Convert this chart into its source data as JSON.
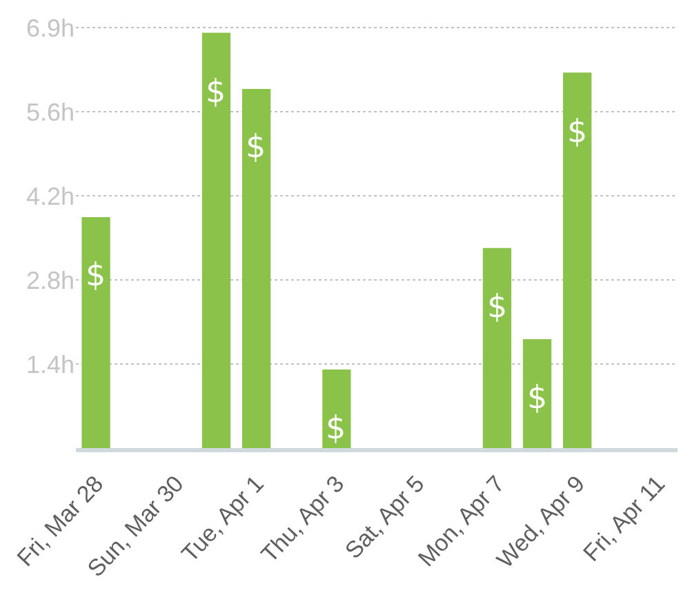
{
  "chart_data": {
    "type": "bar",
    "categories": [
      "Fri, Mar 28",
      null,
      "Sun, Mar 30",
      null,
      "Tue, Apr 1",
      null,
      "Thu, Apr 3",
      null,
      "Sat, Apr 5",
      null,
      "Mon, Apr 7",
      null,
      "Wed, Apr 9",
      null,
      "Fri, Apr 11"
    ],
    "values": [
      3.82,
      0,
      0,
      6.87,
      5.94,
      0,
      1.3,
      0,
      0,
      0,
      3.31,
      1.8,
      6.21,
      0,
      0
    ],
    "value_labels": [
      "$",
      null,
      null,
      "$",
      "$",
      null,
      "$",
      null,
      null,
      null,
      "$",
      "$",
      "$",
      null,
      null
    ],
    "color": "#8bc34a",
    "ylim": [
      0,
      7.0
    ],
    "yticks": [
      {
        "value": 1.39,
        "label": "1.4h"
      },
      {
        "value": 2.78,
        "label": "2.8h"
      },
      {
        "value": 4.17,
        "label": "4.2h"
      },
      {
        "value": 5.56,
        "label": "5.6h"
      },
      {
        "value": 6.95,
        "label": "6.9h"
      }
    ],
    "grid": "y"
  }
}
